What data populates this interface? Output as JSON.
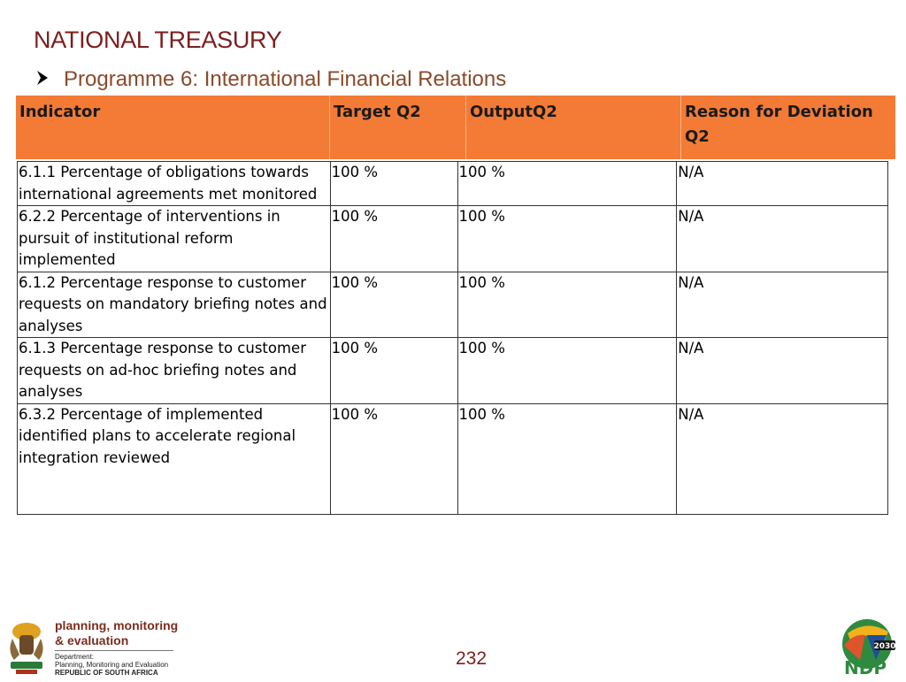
{
  "slide": {
    "title": "NATIONAL TREASURY",
    "subtitle": "Programme 6: International Financial Relations",
    "page_number": "232"
  },
  "table": {
    "headers": [
      "Indicator",
      "Target Q2",
      "OutputQ2",
      "Reason for Deviation Q2"
    ],
    "rows": [
      {
        "indicator": "6.1.1 Percentage of obligations towards international agreements met monitored",
        "target": "100 %",
        "output": "100 %",
        "reason": "N/A"
      },
      {
        "indicator": "6.2.2 Percentage of interventions in pursuit of institutional reform implemented",
        "target": "100 %",
        "output": "100 %",
        "reason": "N/A"
      },
      {
        "indicator": "6.1.2 Percentage response to customer requests on mandatory briefing notes and analyses",
        "target": "100 %",
        "output": "100 %",
        "reason": "N/A"
      },
      {
        "indicator": "6.1.3 Percentage response to customer requests on ad-hoc briefing notes and analyses",
        "target": "100 %",
        "output": "100 %",
        "reason": "N/A"
      },
      {
        "indicator": "6.3.2 Percentage of implemented identified plans to accelerate regional integration reviewed",
        "target": "100 %",
        "output": "100 %",
        "reason": "N/A"
      }
    ]
  },
  "footer": {
    "pme_line1": "planning, monitoring",
    "pme_line2": "& evaluation",
    "dept_line1": "Department:",
    "dept_line2": "Planning, Monitoring and Evaluation",
    "dept_line3": "REPUBLIC OF SOUTH AFRICA",
    "ndp_label": "NDP",
    "ndp_year": "2030"
  },
  "colors": {
    "header_bg": "#f37b35",
    "title": "#7a1e1e",
    "subtitle": "#8a4a2a"
  },
  "icons": {
    "bullet": "arrow-bullet-icon",
    "coat_of_arms": "coat-of-arms-icon",
    "ndp": "ndp-logo-icon"
  }
}
